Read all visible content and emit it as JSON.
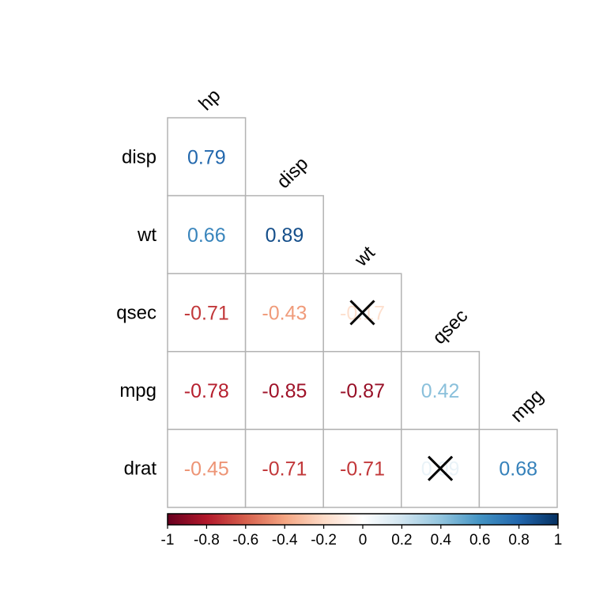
{
  "chart_data": {
    "type": "heatmap",
    "title": "",
    "variables_rows": [
      "disp",
      "wt",
      "qsec",
      "mpg",
      "drat"
    ],
    "variables_cols": [
      "hp",
      "disp",
      "wt",
      "qsec",
      "mpg"
    ],
    "values": [
      [
        0.79
      ],
      [
        0.66,
        0.89
      ],
      [
        -0.71,
        -0.43,
        -0.17
      ],
      [
        -0.78,
        -0.85,
        -0.87,
        0.42
      ],
      [
        -0.45,
        -0.71,
        -0.71,
        0.09,
        0.68
      ]
    ],
    "value_labels": [
      [
        "0.79"
      ],
      [
        "0.66",
        "0.89"
      ],
      [
        "-0.71",
        "-0.43",
        "-0.17"
      ],
      [
        "-0.78",
        "-0.85",
        "-0.87",
        "0.42"
      ],
      [
        "-0.45",
        "-0.71",
        "-0.71",
        "0.09",
        "0.68"
      ]
    ],
    "insignificant": [
      [
        false
      ],
      [
        false,
        false
      ],
      [
        false,
        false,
        true
      ],
      [
        false,
        false,
        false,
        false
      ],
      [
        false,
        false,
        false,
        true,
        false
      ]
    ],
    "colorbar": {
      "range": [
        -1,
        1
      ],
      "ticks": [
        "-1",
        "-0.8",
        "-0.6",
        "-0.4",
        "-0.2",
        "0",
        "0.2",
        "0.4",
        "0.6",
        "0.8",
        "1"
      ],
      "tick_values": [
        -1,
        -0.8,
        -0.6,
        -0.4,
        -0.2,
        0,
        0.2,
        0.4,
        0.6,
        0.8,
        1
      ],
      "palette": [
        "#67001F",
        "#B2182B",
        "#D6604D",
        "#F4A582",
        "#FDDBC7",
        "#FFFFFF",
        "#D1E5F0",
        "#92C5DE",
        "#4393C3",
        "#2166AC",
        "#053061"
      ]
    }
  }
}
